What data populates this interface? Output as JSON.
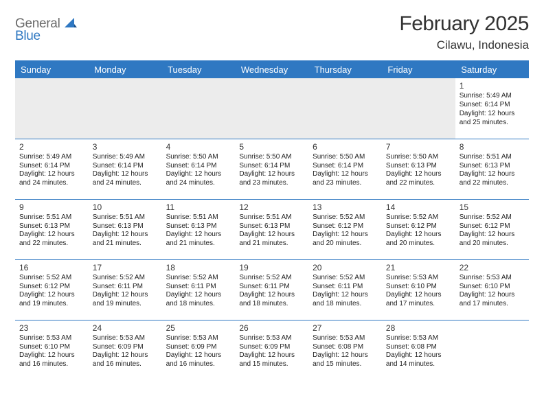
{
  "logo": {
    "line1": "General",
    "line2": "Blue"
  },
  "title": "February 2025",
  "location": "Cilawu, Indonesia",
  "colors": {
    "header_bg": "#2f78c2",
    "header_text": "#ffffff",
    "rule": "#2f78c2",
    "blank_row_bg": "#ececec",
    "logo_gray": "#6b6b6b",
    "logo_blue": "#2f78c2"
  },
  "typography": {
    "title_fontsize": 30,
    "location_fontsize": 17,
    "header_fontsize": 13,
    "daynum_fontsize": 12,
    "body_fontsize": 10
  },
  "weekdays": [
    "Sunday",
    "Monday",
    "Tuesday",
    "Wednesday",
    "Thursday",
    "Friday",
    "Saturday"
  ],
  "weeks": [
    [
      null,
      null,
      null,
      null,
      null,
      null,
      {
        "n": "1",
        "sunrise": "5:49 AM",
        "sunset": "6:14 PM",
        "daylight": "12 hours and 25 minutes."
      }
    ],
    [
      {
        "n": "2",
        "sunrise": "5:49 AM",
        "sunset": "6:14 PM",
        "daylight": "12 hours and 24 minutes."
      },
      {
        "n": "3",
        "sunrise": "5:49 AM",
        "sunset": "6:14 PM",
        "daylight": "12 hours and 24 minutes."
      },
      {
        "n": "4",
        "sunrise": "5:50 AM",
        "sunset": "6:14 PM",
        "daylight": "12 hours and 24 minutes."
      },
      {
        "n": "5",
        "sunrise": "5:50 AM",
        "sunset": "6:14 PM",
        "daylight": "12 hours and 23 minutes."
      },
      {
        "n": "6",
        "sunrise": "5:50 AM",
        "sunset": "6:14 PM",
        "daylight": "12 hours and 23 minutes."
      },
      {
        "n": "7",
        "sunrise": "5:50 AM",
        "sunset": "6:13 PM",
        "daylight": "12 hours and 22 minutes."
      },
      {
        "n": "8",
        "sunrise": "5:51 AM",
        "sunset": "6:13 PM",
        "daylight": "12 hours and 22 minutes."
      }
    ],
    [
      {
        "n": "9",
        "sunrise": "5:51 AM",
        "sunset": "6:13 PM",
        "daylight": "12 hours and 22 minutes."
      },
      {
        "n": "10",
        "sunrise": "5:51 AM",
        "sunset": "6:13 PM",
        "daylight": "12 hours and 21 minutes."
      },
      {
        "n": "11",
        "sunrise": "5:51 AM",
        "sunset": "6:13 PM",
        "daylight": "12 hours and 21 minutes."
      },
      {
        "n": "12",
        "sunrise": "5:51 AM",
        "sunset": "6:13 PM",
        "daylight": "12 hours and 21 minutes."
      },
      {
        "n": "13",
        "sunrise": "5:52 AM",
        "sunset": "6:12 PM",
        "daylight": "12 hours and 20 minutes."
      },
      {
        "n": "14",
        "sunrise": "5:52 AM",
        "sunset": "6:12 PM",
        "daylight": "12 hours and 20 minutes."
      },
      {
        "n": "15",
        "sunrise": "5:52 AM",
        "sunset": "6:12 PM",
        "daylight": "12 hours and 20 minutes."
      }
    ],
    [
      {
        "n": "16",
        "sunrise": "5:52 AM",
        "sunset": "6:12 PM",
        "daylight": "12 hours and 19 minutes."
      },
      {
        "n": "17",
        "sunrise": "5:52 AM",
        "sunset": "6:11 PM",
        "daylight": "12 hours and 19 minutes."
      },
      {
        "n": "18",
        "sunrise": "5:52 AM",
        "sunset": "6:11 PM",
        "daylight": "12 hours and 18 minutes."
      },
      {
        "n": "19",
        "sunrise": "5:52 AM",
        "sunset": "6:11 PM",
        "daylight": "12 hours and 18 minutes."
      },
      {
        "n": "20",
        "sunrise": "5:52 AM",
        "sunset": "6:11 PM",
        "daylight": "12 hours and 18 minutes."
      },
      {
        "n": "21",
        "sunrise": "5:53 AM",
        "sunset": "6:10 PM",
        "daylight": "12 hours and 17 minutes."
      },
      {
        "n": "22",
        "sunrise": "5:53 AM",
        "sunset": "6:10 PM",
        "daylight": "12 hours and 17 minutes."
      }
    ],
    [
      {
        "n": "23",
        "sunrise": "5:53 AM",
        "sunset": "6:10 PM",
        "daylight": "12 hours and 16 minutes."
      },
      {
        "n": "24",
        "sunrise": "5:53 AM",
        "sunset": "6:09 PM",
        "daylight": "12 hours and 16 minutes."
      },
      {
        "n": "25",
        "sunrise": "5:53 AM",
        "sunset": "6:09 PM",
        "daylight": "12 hours and 16 minutes."
      },
      {
        "n": "26",
        "sunrise": "5:53 AM",
        "sunset": "6:09 PM",
        "daylight": "12 hours and 15 minutes."
      },
      {
        "n": "27",
        "sunrise": "5:53 AM",
        "sunset": "6:08 PM",
        "daylight": "12 hours and 15 minutes."
      },
      {
        "n": "28",
        "sunrise": "5:53 AM",
        "sunset": "6:08 PM",
        "daylight": "12 hours and 14 minutes."
      },
      null
    ]
  ],
  "labels": {
    "sunrise": "Sunrise:",
    "sunset": "Sunset:",
    "daylight": "Daylight:"
  }
}
